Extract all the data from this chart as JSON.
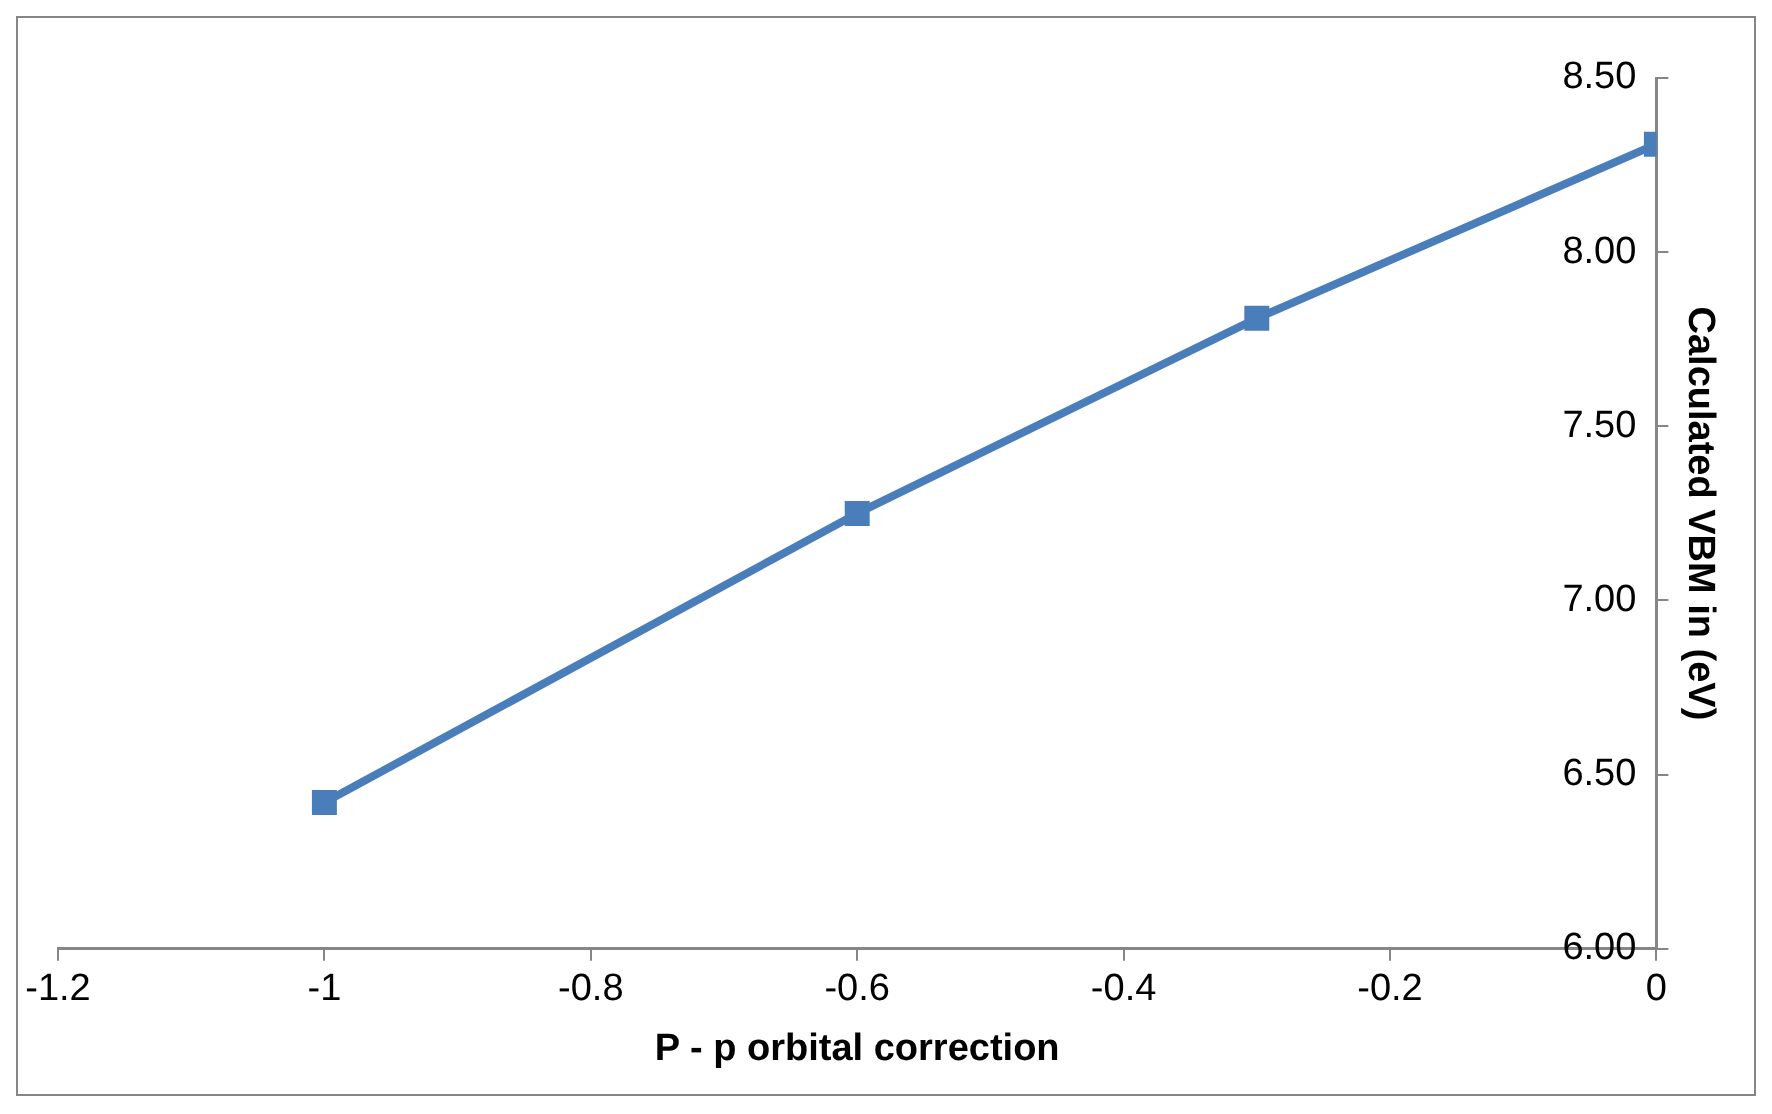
{
  "chart_data": {
    "type": "line",
    "xlabel": "P - p orbital correction",
    "ylabel": "Calculated VBM in (eV)",
    "x": [
      -1,
      -0.6,
      -0.3,
      0
    ],
    "series": [
      {
        "color": "#4a7ebb",
        "values": [
          6.42,
          7.25,
          7.81,
          8.31
        ]
      }
    ],
    "xlim": [
      -1.2,
      0
    ],
    "xticks": [
      -1.2,
      -1,
      -0.8,
      -0.6,
      -0.4,
      -0.2,
      0
    ],
    "ylim": [
      6,
      8.5
    ],
    "yticks": [
      {
        "value": 6,
        "label": "6.00"
      },
      {
        "value": 6.5,
        "label": "6.50"
      },
      {
        "value": 7,
        "label": "7.00"
      },
      {
        "value": 7.5,
        "label": "7.50"
      },
      {
        "value": 8,
        "label": "8.00"
      },
      {
        "value": 8.5,
        "label": "8.50"
      }
    ],
    "grid": false,
    "legend": false,
    "marker": "square",
    "line_style": "solid"
  }
}
